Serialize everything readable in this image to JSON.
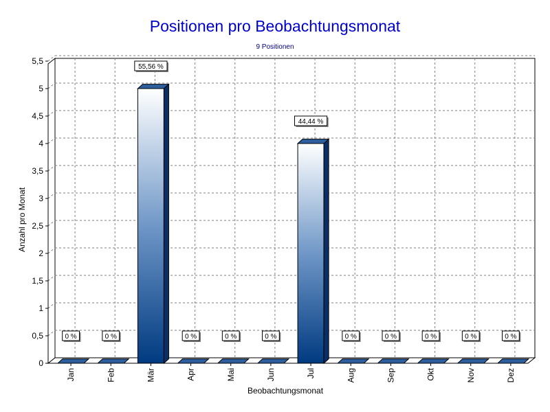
{
  "chart_data": {
    "type": "bar",
    "title": "Positionen pro Beobachtungsmonat",
    "subtitle": "9 Positionen",
    "xlabel": "Beobachtungsmonat",
    "ylabel": "Anzahl pro Monat",
    "categories": [
      "Jan",
      "Feb",
      "Mär",
      "Apr",
      "Mai",
      "Jun",
      "Jul",
      "Aug",
      "Sep",
      "Okt",
      "Nov",
      "Dez"
    ],
    "values": [
      0,
      0,
      5,
      0,
      0,
      0,
      4,
      0,
      0,
      0,
      0,
      0
    ],
    "data_labels": [
      "0 %",
      "0 %",
      "55,56 %",
      "0 %",
      "0 %",
      "0 %",
      "44,44 %",
      "0 %",
      "0 %",
      "0 %",
      "0 %",
      "0 %"
    ],
    "yticks": [
      "0",
      "0,5",
      "1",
      "1,5",
      "2",
      "2,5",
      "3",
      "3,5",
      "4",
      "4,5",
      "5",
      "5,5"
    ],
    "ylim": [
      0,
      5.5
    ],
    "grid": true,
    "colors": {
      "title": "#0000cc",
      "subtitle": "#000080",
      "bar_dark": "#003a80",
      "bar_mid": "#5f8bbf",
      "bar_light": "#ffffff",
      "bar_top": "#2d5f9e",
      "bar_side": "#0a2f66"
    }
  }
}
